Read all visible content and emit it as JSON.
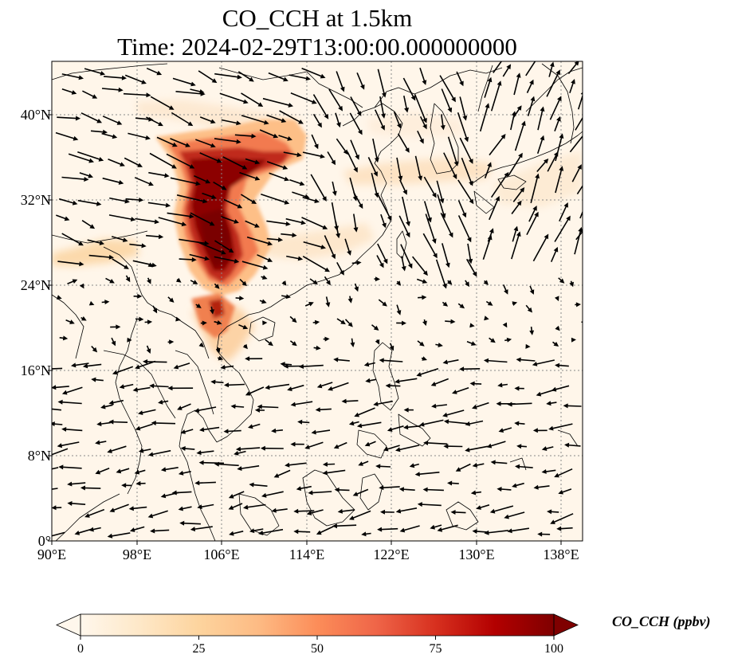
{
  "title": {
    "line1": "CO_CCH at 1.5km",
    "line2": "Time: 2024-02-29T13:00:00.000000000"
  },
  "axes": {
    "x_ticks": [
      "90°E",
      "98°E",
      "106°E",
      "114°E",
      "122°E",
      "130°E",
      "138°E"
    ],
    "y_ticks": [
      "40°N",
      "32°N",
      "24°N",
      "16°N",
      "8°N",
      "0°"
    ],
    "lon_range": [
      90,
      140
    ],
    "lat_range": [
      0,
      45
    ]
  },
  "colorbar": {
    "label": "CO_CCH (ppbv)",
    "ticks": [
      "0",
      "25",
      "50",
      "75",
      "100"
    ],
    "range": [
      0,
      100
    ],
    "extend": "both",
    "colormap": "OrRd",
    "colors": [
      "#fff7ec",
      "#fee8c8",
      "#fdd49e",
      "#fdbb84",
      "#fc8d59",
      "#ef6548",
      "#d7301f",
      "#990000",
      "#7f0000"
    ]
  },
  "colors": {
    "background": "#fff6ea",
    "coast": "#000000",
    "grid": "#8a8a8a"
  }
}
